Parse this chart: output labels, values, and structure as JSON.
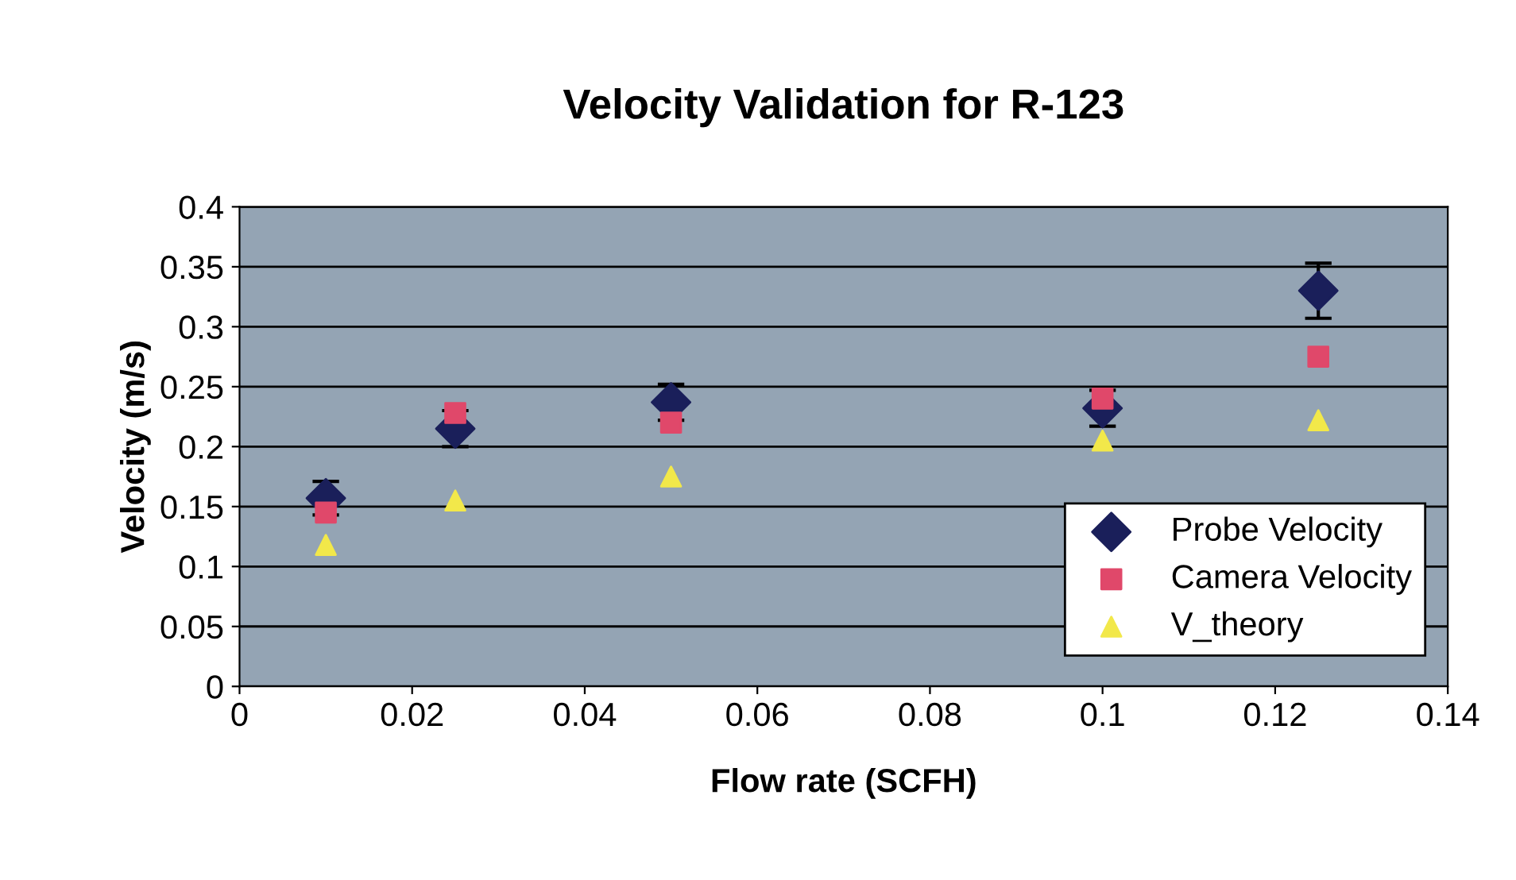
{
  "chart_data": {
    "type": "scatter",
    "title": "Velocity Validation for R-123",
    "xlabel": "Flow rate (SCFH)",
    "ylabel": "Velocity (m/s)",
    "x": [
      0.01,
      0.025,
      0.05,
      0.1,
      0.125
    ],
    "series": [
      {
        "name": "Probe Velocity",
        "color": "#1a1f5a",
        "marker": "diamond",
        "values": [
          0.157,
          0.215,
          0.237,
          0.232,
          0.33
        ],
        "errors": [
          0.014,
          0.015,
          0.015,
          0.015,
          0.023
        ]
      },
      {
        "name": "Camera Velocity",
        "color": "#e0486a",
        "marker": "square",
        "values": [
          0.145,
          0.228,
          0.22,
          0.24,
          0.275
        ]
      },
      {
        "name": "V_theory",
        "color": "#f2e84a",
        "marker": "triangle",
        "values": [
          0.118,
          0.155,
          0.175,
          0.205,
          0.222
        ]
      }
    ],
    "xlim": [
      0,
      0.14
    ],
    "xticks": [
      0,
      0.02,
      0.04,
      0.06,
      0.08,
      0.1,
      0.12,
      0.14
    ],
    "ylim": [
      0,
      0.4
    ],
    "yticks": [
      0,
      0.05,
      0.1,
      0.15,
      0.2,
      0.25,
      0.3,
      0.35,
      0.4
    ],
    "grid": "y",
    "legend": "bottom right"
  }
}
